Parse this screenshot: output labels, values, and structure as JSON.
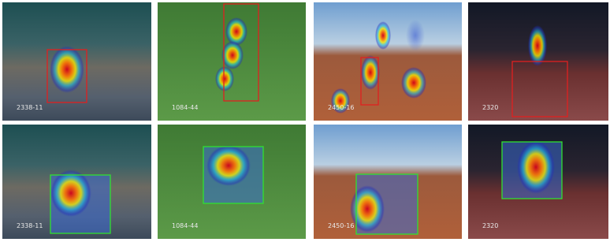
{
  "rows": [
    {
      "panels": [
        {
          "label": "2338-11"
        },
        {
          "label": "1084-44"
        },
        {
          "label": "2450-16"
        },
        {
          "label": "2320"
        }
      ]
    },
    {
      "panels": [
        {
          "label": "2338-11"
        },
        {
          "label": "1084-44"
        },
        {
          "label": "2450-16"
        },
        {
          "label": "2320"
        }
      ]
    }
  ]
}
